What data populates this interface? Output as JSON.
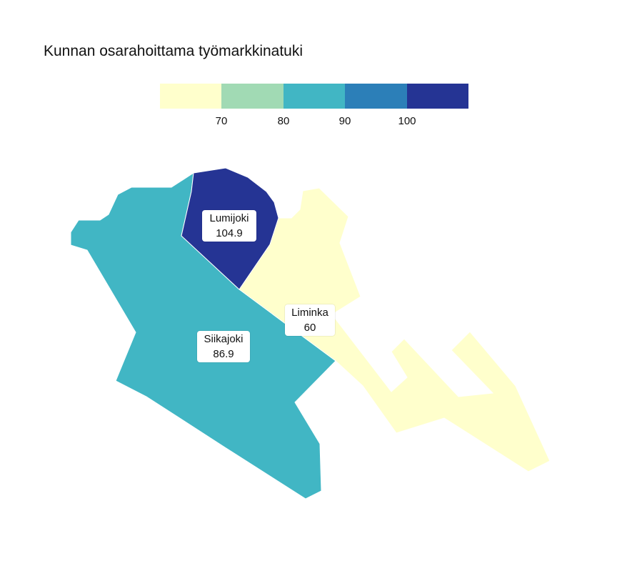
{
  "title": "Kunnan osarahoittama työmarkkinatuki",
  "legend": {
    "colors": [
      "#ffffcc",
      "#a1dab4",
      "#41b6c4",
      "#2c7fb8",
      "#253494"
    ],
    "ticks": [
      "70",
      "80",
      "90",
      "100"
    ]
  },
  "regions": [
    {
      "name": "Siikajoki",
      "value": "86.9",
      "color": "#41b6c4"
    },
    {
      "name": "Lumijoki",
      "value": "104.9",
      "color": "#253494"
    },
    {
      "name": "Liminka",
      "value": "60",
      "color": "#ffffcc"
    }
  ]
}
